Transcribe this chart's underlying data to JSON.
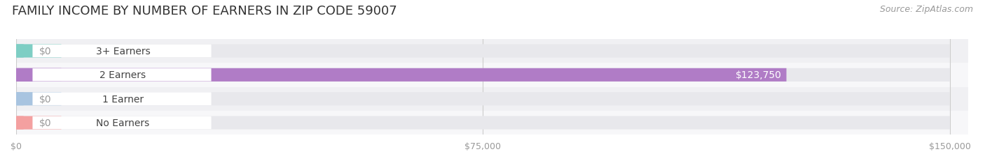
{
  "title": "FAMILY INCOME BY NUMBER OF EARNERS IN ZIP CODE 59007",
  "source": "Source: ZipAtlas.com",
  "categories": [
    "No Earners",
    "1 Earner",
    "2 Earners",
    "3+ Earners"
  ],
  "values": [
    0,
    0,
    123750,
    0
  ],
  "max_value": 150000,
  "bar_colors": [
    "#f4a0a0",
    "#a8c4e0",
    "#b07cc6",
    "#7ecec4"
  ],
  "tick_labels": [
    "$0",
    "$75,000",
    "$150,000"
  ],
  "tick_values": [
    0,
    75000,
    150000
  ],
  "value_label_color": "#ffffff",
  "zero_label_color": "#999999",
  "title_fontsize": 13,
  "source_fontsize": 9,
  "label_fontsize": 10,
  "tick_fontsize": 9,
  "fig_bg_color": "#ffffff",
  "bar_height": 0.55,
  "bg_bar_color": "#e8e8ec",
  "row_colors": [
    "#f7f7f9",
    "#f0f0f3"
  ]
}
